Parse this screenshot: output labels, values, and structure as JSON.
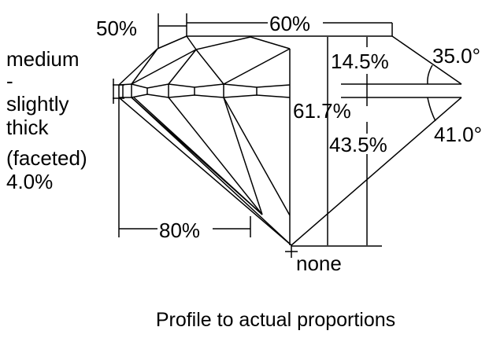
{
  "girdle_label": [
    "medium",
    "-",
    "slightly",
    "thick",
    "(faceted)",
    "4.0%"
  ],
  "dimensions": {
    "star_length": "50%",
    "table": "60%",
    "crown_height": "14.5%",
    "crown_angle": "35.0°",
    "total_depth": "61.7%",
    "pavilion_depth": "43.5%",
    "pavilion_angle": "41.0°",
    "lower_half_length": "80%",
    "culet": "none"
  },
  "caption": "Profile to actual proportions"
}
